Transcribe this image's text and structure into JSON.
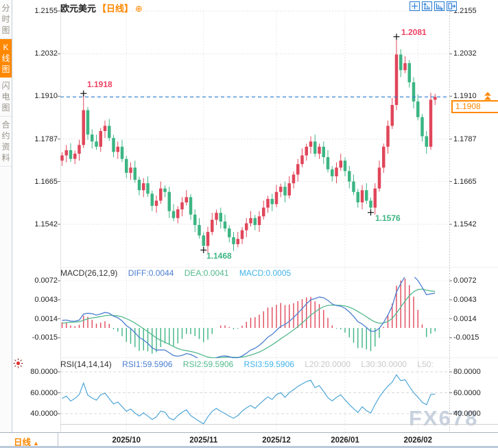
{
  "sidebar": {
    "tabs": [
      {
        "label": "分时图",
        "active": false
      },
      {
        "label": "K线图",
        "active": true
      },
      {
        "label": "闪电图",
        "active": false
      },
      {
        "label": "合约资料",
        "active": false
      }
    ]
  },
  "header": {
    "symbol": "欧元美元",
    "period_tag": "【日线】",
    "add_icon": "⊕"
  },
  "toolbar": {
    "icons": [
      "crosshair-icon",
      "scale-vertical-icon",
      "scale-horizontal-icon",
      "exit-icon"
    ]
  },
  "price_axis": {
    "labels": [
      "1.2155",
      "1.2032",
      "1.1910",
      "1.1787",
      "1.1665",
      "1.1542"
    ]
  },
  "annotations": {
    "high1": "1.1918",
    "high2": "1.2081",
    "low1": "1.1468",
    "low2": "1.1576"
  },
  "current_price": {
    "value": "1.1908",
    "direction": "up",
    "arrow_icon": "double-up-arrow-icon"
  },
  "macd_panel": {
    "title": "MACD(26,12,9)",
    "diff_label": "DIFF:0.0044",
    "dea_label": "DEA:0.0041",
    "macd_label": "MACD:0.0005",
    "axis": [
      "0.0072",
      "0.0043",
      "0.0014",
      "-0.0015"
    ]
  },
  "rsi_panel": {
    "title": "RSI(14,14,14)",
    "rsi1_label": "RSI1:59.5906",
    "rsi2_label": "RSI2:59.5906",
    "rsi3_label": "RSI3:59.5906",
    "l20_label": "L20:20.0000",
    "l30_label": "L30:30.0000",
    "l50_label": "L50:",
    "alert_icon": "red-alert-icon",
    "axis": [
      "80.0000",
      "60.0000",
      "40.0000"
    ]
  },
  "bottom_bar": {
    "period_label": "日线",
    "arrow": "▲",
    "dates": [
      "2025/10",
      "2025/11",
      "2025/12",
      "2026/01",
      "2026/02"
    ]
  },
  "watermark": "FX678",
  "colors": {
    "up": "#e0465a",
    "down": "#3cb583",
    "accent_orange": "#ff8800",
    "current_line_blue": "#2a7fd4",
    "diff_blue": "#4a7ed0",
    "dea_green": "#52b98c",
    "macd_cyan": "#3fb3e8",
    "rsi_line": "#4da6d6",
    "grid": "#dddddd",
    "watermark": "#c7d1de"
  },
  "chart_data": {
    "type": "candlestick",
    "title": "欧元美元 日线",
    "y_axis_values": [
      1.2155,
      1.2032,
      1.191,
      1.1787,
      1.1665,
      1.1542
    ],
    "current_price": 1.1908,
    "closes": [
      1.174,
      1.1755,
      1.173,
      1.1745,
      1.177,
      1.187,
      1.18,
      1.178,
      1.1765,
      1.181,
      1.1825,
      1.179,
      1.175,
      1.1765,
      1.173,
      1.169,
      1.1705,
      1.167,
      1.164,
      1.166,
      1.163,
      1.1595,
      1.161,
      1.1645,
      1.1635,
      1.158,
      1.156,
      1.1585,
      1.1605,
      1.162,
      1.157,
      1.154,
      1.151,
      1.148,
      1.152,
      1.1555,
      1.1575,
      1.155,
      1.153,
      1.1505,
      1.1485,
      1.15,
      1.1525,
      1.1545,
      1.156,
      1.154,
      1.1565,
      1.159,
      1.1615,
      1.16,
      1.1635,
      1.165,
      1.1625,
      1.166,
      1.1685,
      1.1715,
      1.174,
      1.1765,
      1.178,
      1.1745,
      1.1765,
      1.1735,
      1.17,
      1.168,
      1.1705,
      1.1725,
      1.1695,
      1.1665,
      1.1635,
      1.1605,
      1.164,
      1.161,
      1.159,
      1.1645,
      1.1705,
      1.1765,
      1.1825,
      1.1885,
      1.203,
      1.1985,
      1.2005,
      1.195,
      1.1895,
      1.185,
      1.1795,
      1.1765,
      1.19,
      1.1908
    ],
    "wick_overrides": {
      "5": {
        "high": 1.1918
      },
      "33": {
        "low": 1.1468
      },
      "72": {
        "low": 1.1576
      },
      "78": {
        "high": 1.2081
      }
    },
    "month_ticks": [
      {
        "label": "2025/10",
        "index": 15
      },
      {
        "label": "2025/11",
        "index": 33
      },
      {
        "label": "2025/12",
        "index": 50
      },
      {
        "label": "2026/01",
        "index": 66
      },
      {
        "label": "2026/02",
        "index": 83
      }
    ],
    "indicators": {
      "macd": {
        "params": [
          26,
          12,
          9
        ],
        "diff": 0.0044,
        "dea": 0.0041,
        "macd": 0.0005,
        "axis_values": [
          0.0072,
          0.0043,
          0.0014,
          -0.0015
        ]
      },
      "rsi": {
        "params": [
          14,
          14,
          14
        ],
        "rsi1": 59.5906,
        "rsi2": 59.5906,
        "rsi3": 59.5906,
        "axis_values": [
          80,
          60,
          40
        ]
      }
    },
    "extremes": {
      "high1": 1.1918,
      "high2": 1.2081,
      "low1": 1.1468,
      "low2": 1.1576
    }
  }
}
